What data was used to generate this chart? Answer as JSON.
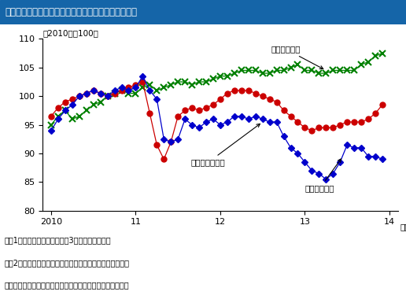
{
  "title": "輸出数量指数、鉱工業生産指数、輸入数量指数の推移",
  "subtitle": "（2010年＝100）",
  "note1": "（注1）各指数は季節調整値の3ヶ月移動平均値。",
  "note2": "（注2）輸出数量指数、輸入数量指数の季節調整は内閣府。",
  "note3": "（出所）経済産業省、財務省、内閣府統計より大和総研作成",
  "header_color": "#1565A8",
  "header_text_color": "#FFFFFF",
  "ylim": [
    80,
    110
  ],
  "yticks": [
    80,
    85,
    90,
    95,
    100,
    105,
    110
  ],
  "x_start": 2010.0,
  "xtick_positions": [
    2010,
    2011,
    2012,
    2013,
    2014
  ],
  "xticklabels": [
    "2010",
    "11",
    "12",
    "13",
    "14"
  ],
  "export_color": "#0000CC",
  "export_marker": "D",
  "export_marker_size": 4,
  "export_label": "輸出数量指数",
  "export_data": [
    94.0,
    96.0,
    97.5,
    98.5,
    100.0,
    100.5,
    101.0,
    100.5,
    100.0,
    101.0,
    101.5,
    101.0,
    101.5,
    103.5,
    101.0,
    99.5,
    92.5,
    92.0,
    92.5,
    96.0,
    95.0,
    94.5,
    95.5,
    96.0,
    95.0,
    95.5,
    96.5,
    96.5,
    96.0,
    96.5,
    96.0,
    95.5,
    95.5,
    93.0,
    91.0,
    90.0,
    88.5,
    87.0,
    86.5,
    85.5,
    86.5,
    88.5,
    91.5,
    91.0,
    91.0,
    89.5,
    89.5,
    89.0
  ],
  "industry_color": "#CC0000",
  "industry_marker": "o",
  "industry_marker_size": 5,
  "industry_label": "鉱工業生産指数",
  "industry_data": [
    96.5,
    98.0,
    99.0,
    99.5,
    100.0,
    100.5,
    101.0,
    100.5,
    100.0,
    100.5,
    101.0,
    101.5,
    102.0,
    102.5,
    97.0,
    91.5,
    89.0,
    92.0,
    96.5,
    97.5,
    98.0,
    97.5,
    98.0,
    98.5,
    99.5,
    100.5,
    101.0,
    101.0,
    101.0,
    100.5,
    100.0,
    99.5,
    99.0,
    97.5,
    96.5,
    95.5,
    94.5,
    94.0,
    94.5,
    94.5,
    94.5,
    95.0,
    95.5,
    95.5,
    95.5,
    96.0,
    97.0,
    98.5
  ],
  "import_color": "#008000",
  "import_marker": "x",
  "import_marker_size": 6,
  "import_label": "輸入数量指数",
  "import_data": [
    95.0,
    96.5,
    97.5,
    96.0,
    96.5,
    97.5,
    98.5,
    99.0,
    100.0,
    100.5,
    101.0,
    100.5,
    100.5,
    101.5,
    102.0,
    101.0,
    101.5,
    102.0,
    102.5,
    102.5,
    102.0,
    102.5,
    102.5,
    103.0,
    103.5,
    103.5,
    104.0,
    104.5,
    104.5,
    104.5,
    104.0,
    104.0,
    104.5,
    104.5,
    105.0,
    105.5,
    104.5,
    104.5,
    104.0,
    104.0,
    104.5,
    104.5,
    104.5,
    104.5,
    105.5,
    106.0,
    107.0,
    107.5
  ]
}
